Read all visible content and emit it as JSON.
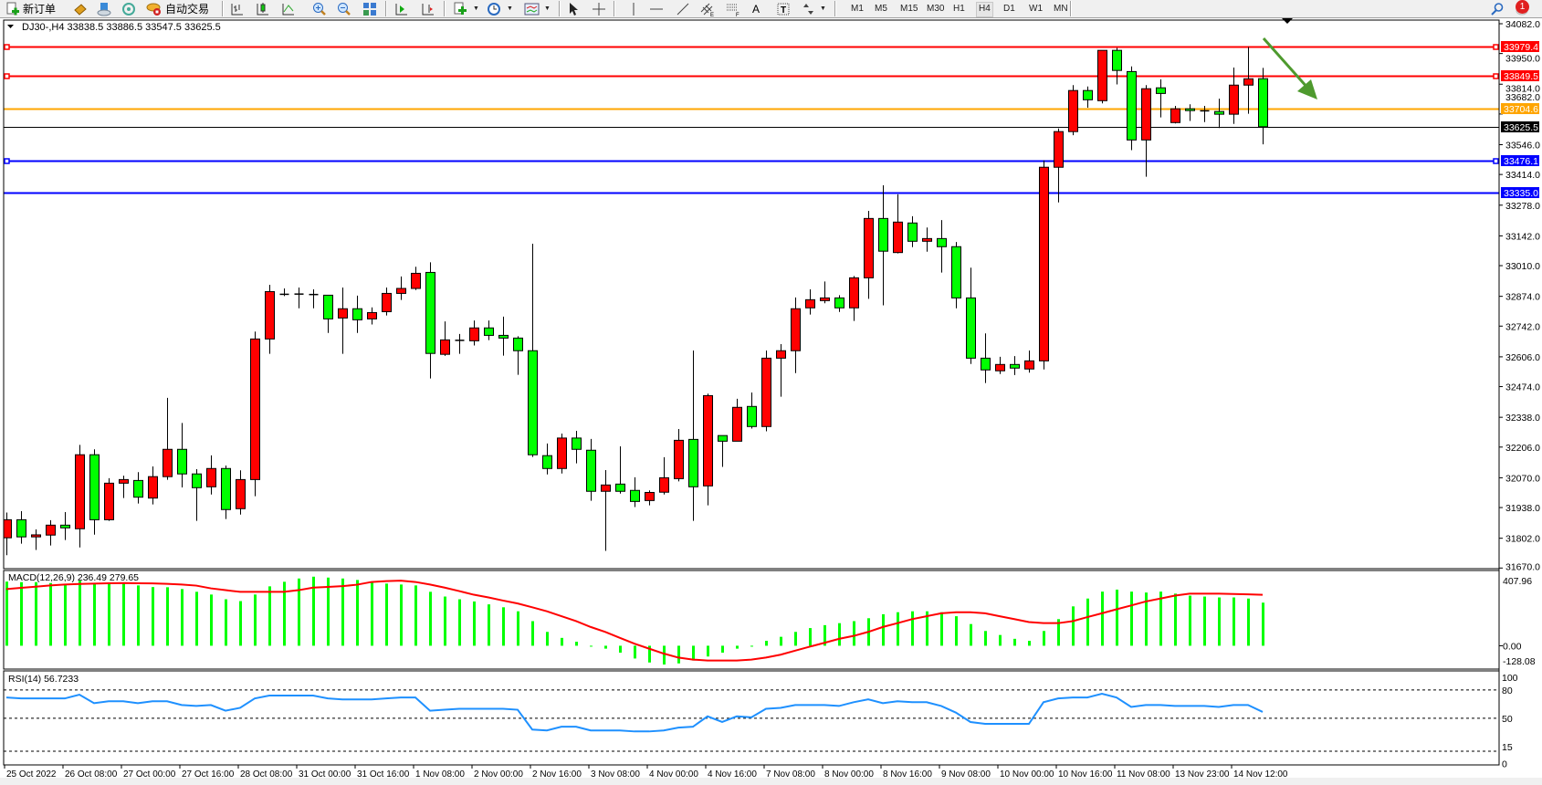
{
  "toolbar": {
    "new_order_label": "新订单",
    "auto_trading_label": "自动交易",
    "timeframes": [
      "M1",
      "M5",
      "M15",
      "M30",
      "H1",
      "H4",
      "D1",
      "W1",
      "MN"
    ],
    "active_timeframe": "H4",
    "notification_count": "1",
    "icons": [
      "new-order-icon",
      "market-watch-icon",
      "navigator-icon",
      "signals-icon",
      "auto-trading-icon",
      "bar-chart-icon",
      "candlestick-icon",
      "line-chart-icon",
      "zoom-in-icon",
      "zoom-out-icon",
      "tile-windows-icon",
      "auto-scroll-icon",
      "chart-shift-icon",
      "indicators-icon",
      "periods-icon",
      "templates-icon",
      "cursor-icon",
      "crosshair-icon",
      "vertical-line-icon",
      "horizontal-line-icon",
      "trendline-icon",
      "equidistant-channel-icon",
      "fibonacci-icon",
      "text-icon",
      "text-label-icon",
      "arrows-icon",
      "search-icon",
      "chat-icon"
    ]
  },
  "chart": {
    "info": "DJ30-,H4  33838.5 33886.5 33547.5 33625.5",
    "colors": {
      "bull": "#ff0000",
      "bear": "#00ff00",
      "resistance": "#ff0000",
      "pivot": "#ffa500",
      "support": "#0000ff",
      "current": "#000000",
      "rsi": "#1e90ff",
      "macd_signal": "#ff0000",
      "macd_hist": "#00ff00",
      "arrow": "#4e9a2e"
    }
  },
  "chart_data": [
    {
      "type": "candlestick",
      "symbol": "DJ30-",
      "timeframe": "H4",
      "ylim": [
        31670.0,
        34082.0
      ],
      "y_ticks": [
        "34082.0",
        "33950.0",
        "33814.0",
        "33682.0",
        "33546.0",
        "33414.0",
        "33278.0",
        "33142.0",
        "33010.0",
        "32874.0",
        "32742.0",
        "32606.0",
        "32474.0",
        "32338.0",
        "32206.0",
        "32070.0",
        "31938.0",
        "31802.0",
        "31670.0"
      ],
      "x_tick_labels": [
        "25 Oct 2022",
        "26 Oct 08:00",
        "27 Oct 00:00",
        "27 Oct 16:00",
        "28 Oct 08:00",
        "31 Oct 00:00",
        "31 Oct 16:00",
        "1 Nov 08:00",
        "2 Nov 00:00",
        "2 Nov 16:00",
        "3 Nov 08:00",
        "4 Nov 00:00",
        "4 Nov 16:00",
        "7 Nov 08:00",
        "8 Nov 00:00",
        "8 Nov 16:00",
        "9 Nov 08:00",
        "10 Nov 00:00",
        "10 Nov 16:00",
        "11 Nov 08:00",
        "13 Nov 23:00",
        "14 Nov 12:00"
      ],
      "x_tick_every_bars": 4,
      "ohlc_order": [
        "open",
        "high",
        "low",
        "close"
      ],
      "ohlc": [
        [
          31804,
          31916,
          31727,
          31884
        ],
        [
          31884,
          31922,
          31778,
          31808
        ],
        [
          31808,
          31841,
          31750,
          31817
        ],
        [
          31816,
          31882,
          31770,
          31860
        ],
        [
          31860,
          31918,
          31794,
          31848
        ],
        [
          31844,
          32216,
          31761,
          32172
        ],
        [
          32172,
          32196,
          31818,
          31884
        ],
        [
          31884,
          32068,
          31879,
          32046
        ],
        [
          32046,
          32079,
          31980,
          32062
        ],
        [
          32058,
          32095,
          31956,
          31984
        ],
        [
          31980,
          32120,
          31952,
          32075
        ],
        [
          32075,
          32424,
          32061,
          32196
        ],
        [
          32196,
          32313,
          32027,
          32087
        ],
        [
          32087,
          32108,
          31879,
          32026
        ],
        [
          32030,
          32169,
          31996,
          32111
        ],
        [
          32111,
          32124,
          31887,
          31929
        ],
        [
          31933,
          32103,
          31907,
          32062
        ],
        [
          32062,
          32718,
          31988,
          32685
        ],
        [
          32685,
          32925,
          32619,
          32895
        ],
        [
          32883,
          32909,
          32875,
          32883
        ],
        [
          32882,
          32913,
          32821,
          32884
        ],
        [
          32882,
          32905,
          32821,
          32880
        ],
        [
          32879,
          32879,
          32712,
          32774
        ],
        [
          32778,
          32913,
          32619,
          32819
        ],
        [
          32819,
          32877,
          32712,
          32770
        ],
        [
          32774,
          32825,
          32749,
          32802
        ],
        [
          32806,
          32913,
          32789,
          32887
        ],
        [
          32887,
          32962,
          32858,
          32909
        ],
        [
          32909,
          33005,
          32902,
          32976
        ],
        [
          32980,
          33025,
          32510,
          32621
        ],
        [
          32617,
          32763,
          32610,
          32681
        ],
        [
          32679,
          32707,
          32619,
          32679
        ],
        [
          32677,
          32767,
          32656,
          32734
        ],
        [
          32734,
          32767,
          32680,
          32701
        ],
        [
          32701,
          32784,
          32611,
          32689
        ],
        [
          32689,
          32697,
          32526,
          32633
        ],
        [
          32633,
          33107,
          32162,
          32172
        ],
        [
          32168,
          32222,
          32085,
          32111
        ],
        [
          32111,
          32266,
          32089,
          32246
        ],
        [
          32246,
          32278,
          32134,
          32196
        ],
        [
          32192,
          32242,
          31968,
          32010
        ],
        [
          32010,
          32104,
          31746,
          32038
        ],
        [
          32042,
          32209,
          32000,
          32010
        ],
        [
          32014,
          32072,
          31940,
          31965
        ],
        [
          31969,
          32014,
          31948,
          32005
        ],
        [
          32006,
          32161,
          31996,
          32070
        ],
        [
          32066,
          32286,
          32054,
          32236
        ],
        [
          32240,
          32634,
          31879,
          32030
        ],
        [
          32034,
          32443,
          31948,
          32434
        ],
        [
          32257,
          32257,
          32118,
          32232
        ],
        [
          32232,
          32420,
          32232,
          32382
        ],
        [
          32386,
          32448,
          32288,
          32297
        ],
        [
          32297,
          32634,
          32276,
          32600
        ],
        [
          32600,
          32662,
          32429,
          32633
        ],
        [
          32633,
          32869,
          32534,
          32819
        ],
        [
          32823,
          32905,
          32793,
          32859
        ],
        [
          32855,
          32940,
          32843,
          32867
        ],
        [
          32867,
          32879,
          32805,
          32823
        ],
        [
          32823,
          32964,
          32765,
          32956
        ],
        [
          32956,
          33253,
          32863,
          33219
        ],
        [
          33219,
          33366,
          32834,
          33074
        ],
        [
          33068,
          33326,
          33064,
          33203
        ],
        [
          33199,
          33229,
          33092,
          33118
        ],
        [
          33118,
          33179,
          33072,
          33130
        ],
        [
          33130,
          33212,
          32979,
          33094
        ],
        [
          33094,
          33115,
          32821,
          32867
        ],
        [
          32867,
          33001,
          32574,
          32600
        ],
        [
          32600,
          32710,
          32490,
          32548
        ],
        [
          32544,
          32606,
          32530,
          32572
        ],
        [
          32572,
          32609,
          32525,
          32556
        ],
        [
          32552,
          32634,
          32536,
          32588
        ],
        [
          32588,
          33477,
          32550,
          33446
        ],
        [
          33446,
          33618,
          33290,
          33604
        ],
        [
          33604,
          33810,
          33588,
          33786
        ],
        [
          33786,
          33804,
          33710,
          33745
        ],
        [
          33741,
          33964,
          33729,
          33964
        ],
        [
          33964,
          33975,
          33813,
          33875
        ],
        [
          33870,
          33893,
          33522,
          33567
        ],
        [
          33567,
          33810,
          33404,
          33794
        ],
        [
          33798,
          33836,
          33667,
          33773
        ],
        [
          33644,
          33718,
          33640,
          33705
        ],
        [
          33705,
          33725,
          33651,
          33697
        ],
        [
          33696,
          33718,
          33646,
          33694
        ],
        [
          33693,
          33750,
          33620,
          33681
        ],
        [
          33681,
          33888,
          33638,
          33810
        ],
        [
          33810,
          33979,
          33683,
          33838
        ],
        [
          33838.5,
          33886.5,
          33547.5,
          33625.5
        ]
      ],
      "horizontal_lines": [
        {
          "label": "33979.4",
          "value": 33979.4,
          "color": "#ff0000",
          "markers": true
        },
        {
          "label": "33849.5",
          "value": 33849.5,
          "color": "#ff0000",
          "markers": true
        },
        {
          "label": "33704.6",
          "value": 33704.6,
          "color": "#ffa500",
          "markers": false
        },
        {
          "label": "33625.5",
          "value": 33625.5,
          "color": "#000000",
          "markers": false
        },
        {
          "label": "33476.1",
          "value": 33476.1,
          "color": "#0000ff",
          "markers": true
        },
        {
          "label": "33335.0",
          "value": 33335.0,
          "color": "#0000ff",
          "markers": false
        }
      ],
      "annotation": {
        "type": "arrow",
        "direction": "down-right",
        "color": "#4e9a2e"
      }
    },
    {
      "type": "bar+line",
      "label": "MACD(12,26,9) 236.49 279.65",
      "ylim": [
        -128.08,
        407.96
      ],
      "y_ticks": [
        "407.96",
        "0.00",
        "-128.08"
      ],
      "histogram": [
        352,
        349,
        349,
        344,
        336,
        357,
        339,
        341,
        341,
        331,
        322,
        321,
        311,
        296,
        281,
        255,
        245,
        281,
        326,
        351,
        369,
        379,
        374,
        369,
        361,
        349,
        341,
        336,
        331,
        296,
        270,
        255,
        243,
        227,
        211,
        189,
        135,
        76,
        43,
        22,
        0,
        -16,
        -38,
        -70,
        -92,
        -103,
        -97,
        -81,
        -59,
        -38,
        -16,
        0,
        27,
        49,
        76,
        97,
        113,
        124,
        135,
        151,
        173,
        184,
        189,
        189,
        184,
        162,
        119,
        81,
        59,
        38,
        27,
        81,
        146,
        216,
        259,
        297,
        308,
        297,
        292,
        297,
        286,
        275,
        270,
        265,
        265,
        259,
        236.49
      ],
      "signal": [
        311,
        318,
        324,
        331,
        336,
        339,
        341,
        343,
        344,
        343,
        342,
        340,
        336,
        330,
        315,
        305,
        296,
        296,
        296,
        296,
        305,
        319,
        323,
        327,
        335,
        350,
        355,
        357,
        350,
        336,
        319,
        300,
        280,
        265,
        248,
        232,
        211,
        189,
        162,
        135,
        103,
        76,
        43,
        11,
        -16,
        -43,
        -65,
        -76,
        -81,
        -81,
        -81,
        -76,
        -65,
        -49,
        -27,
        -5,
        16,
        38,
        54,
        76,
        103,
        124,
        146,
        162,
        178,
        184,
        184,
        178,
        162,
        146,
        130,
        124,
        124,
        135,
        157,
        178,
        200,
        221,
        243,
        259,
        275,
        286,
        286,
        286,
        284,
        282,
        279.65
      ]
    },
    {
      "type": "line",
      "label": "RSI(14) 56.7233",
      "ylim": [
        0,
        100
      ],
      "y_ticks": [
        "100",
        "80",
        "50",
        "15",
        "0"
      ],
      "levels": [
        80,
        50,
        15
      ],
      "values": [
        72,
        71,
        71,
        71,
        71,
        75,
        66,
        68,
        68,
        66,
        68,
        68,
        64,
        63,
        64,
        58,
        61,
        71,
        74,
        74,
        74,
        74,
        71,
        70,
        70,
        70,
        71,
        72,
        72,
        58,
        59,
        60,
        60,
        60,
        60,
        59,
        38,
        37,
        41,
        41,
        37,
        37,
        37,
        36,
        36,
        37,
        40,
        41,
        52,
        46,
        52,
        51,
        60,
        61,
        64,
        64,
        64,
        63,
        67,
        70,
        66,
        68,
        67,
        67,
        63,
        56,
        46,
        44,
        44,
        44,
        44,
        67,
        71,
        72,
        72,
        76,
        72,
        62,
        64,
        64,
        63,
        63,
        63,
        62,
        64,
        64,
        56.72
      ]
    }
  ]
}
